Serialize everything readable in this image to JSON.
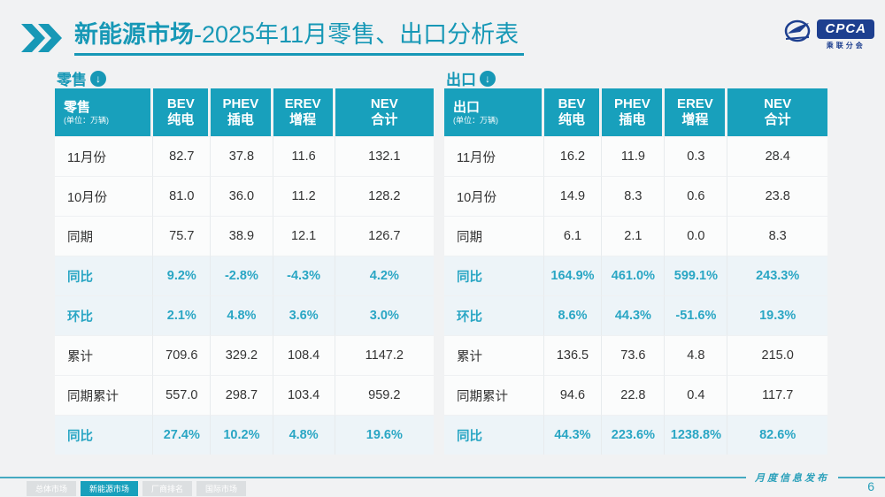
{
  "page": {
    "title_bold": "新能源市场",
    "title_rest": "-2025年11月零售、出口分析表",
    "footer_brand": "月度信息发布",
    "page_number": "6"
  },
  "logo": {
    "text": "CPCA",
    "subtext": "乘联分会"
  },
  "icons": {
    "section_arrow": "↓"
  },
  "colors": {
    "accent": "#18a0bc",
    "highlight_text": "#2aa6c4",
    "logo_navy": "#1d3f8f"
  },
  "footer_tabs": [
    {
      "label": "总体市场",
      "active": false
    },
    {
      "label": "新能源市场",
      "active": true
    },
    {
      "label": "厂商排名",
      "active": false
    },
    {
      "label": "国际市场",
      "active": false
    }
  ],
  "tables": [
    {
      "section_label": "零售",
      "header_title": "零售",
      "header_unit": "(单位：万辆)",
      "columns": [
        [
          "BEV",
          "纯电"
        ],
        [
          "PHEV",
          "插电"
        ],
        [
          "EREV",
          "增程"
        ],
        [
          "NEV",
          "合计"
        ]
      ],
      "rows": [
        {
          "label": "11月份",
          "values": [
            "82.7",
            "37.8",
            "11.6",
            "132.1"
          ],
          "highlight": false
        },
        {
          "label": "10月份",
          "values": [
            "81.0",
            "36.0",
            "11.2",
            "128.2"
          ],
          "highlight": false
        },
        {
          "label": "同期",
          "values": [
            "75.7",
            "38.9",
            "12.1",
            "126.7"
          ],
          "highlight": false
        },
        {
          "label": "同比",
          "values": [
            "9.2%",
            "-2.8%",
            "-4.3%",
            "4.2%"
          ],
          "highlight": true
        },
        {
          "label": "环比",
          "values": [
            "2.1%",
            "4.8%",
            "3.6%",
            "3.0%"
          ],
          "highlight": true
        },
        {
          "label": "累计",
          "values": [
            "709.6",
            "329.2",
            "108.4",
            "1147.2"
          ],
          "highlight": false
        },
        {
          "label": "同期累计",
          "values": [
            "557.0",
            "298.7",
            "103.4",
            "959.2"
          ],
          "highlight": false
        },
        {
          "label": "同比",
          "values": [
            "27.4%",
            "10.2%",
            "4.8%",
            "19.6%"
          ],
          "highlight": true
        }
      ]
    },
    {
      "section_label": "出口",
      "header_title": "出口",
      "header_unit": "(单位：万辆)",
      "columns": [
        [
          "BEV",
          "纯电"
        ],
        [
          "PHEV",
          "插电"
        ],
        [
          "EREV",
          "增程"
        ],
        [
          "NEV",
          "合计"
        ]
      ],
      "rows": [
        {
          "label": "11月份",
          "values": [
            "16.2",
            "11.9",
            "0.3",
            "28.4"
          ],
          "highlight": false
        },
        {
          "label": "10月份",
          "values": [
            "14.9",
            "8.3",
            "0.6",
            "23.8"
          ],
          "highlight": false
        },
        {
          "label": "同期",
          "values": [
            "6.1",
            "2.1",
            "0.0",
            "8.3"
          ],
          "highlight": false
        },
        {
          "label": "同比",
          "values": [
            "164.9%",
            "461.0%",
            "599.1%",
            "243.3%"
          ],
          "highlight": true
        },
        {
          "label": "环比",
          "values": [
            "8.6%",
            "44.3%",
            "-51.6%",
            "19.3%"
          ],
          "highlight": true
        },
        {
          "label": "累计",
          "values": [
            "136.5",
            "73.6",
            "4.8",
            "215.0"
          ],
          "highlight": false
        },
        {
          "label": "同期累计",
          "values": [
            "94.6",
            "22.8",
            "0.4",
            "117.7"
          ],
          "highlight": false
        },
        {
          "label": "同比",
          "values": [
            "44.3%",
            "223.6%",
            "1238.8%",
            "82.6%"
          ],
          "highlight": true
        }
      ]
    }
  ],
  "chart_data": [
    {
      "type": "table",
      "title": "零售 (单位: 万辆)",
      "columns": [
        "BEV 纯电",
        "PHEV 插电",
        "EREV 增程",
        "NEV 合计"
      ],
      "row_labels": [
        "11月份",
        "10月份",
        "同期",
        "同比",
        "环比",
        "累计",
        "同期累计",
        "同比"
      ],
      "cells": [
        [
          82.7,
          37.8,
          11.6,
          132.1
        ],
        [
          81.0,
          36.0,
          11.2,
          128.2
        ],
        [
          75.7,
          38.9,
          12.1,
          126.7
        ],
        [
          "9.2%",
          "-2.8%",
          "-4.3%",
          "4.2%"
        ],
        [
          "2.1%",
          "4.8%",
          "3.6%",
          "3.0%"
        ],
        [
          709.6,
          329.2,
          108.4,
          1147.2
        ],
        [
          557.0,
          298.7,
          103.4,
          959.2
        ],
        [
          "27.4%",
          "10.2%",
          "4.8%",
          "19.6%"
        ]
      ]
    },
    {
      "type": "table",
      "title": "出口 (单位: 万辆)",
      "columns": [
        "BEV 纯电",
        "PHEV 插电",
        "EREV 增程",
        "NEV 合计"
      ],
      "row_labels": [
        "11月份",
        "10月份",
        "同期",
        "同比",
        "环比",
        "累计",
        "同期累计",
        "同比"
      ],
      "cells": [
        [
          16.2,
          11.9,
          0.3,
          28.4
        ],
        [
          14.9,
          8.3,
          0.6,
          23.8
        ],
        [
          6.1,
          2.1,
          0.0,
          8.3
        ],
        [
          "164.9%",
          "461.0%",
          "599.1%",
          "243.3%"
        ],
        [
          "8.6%",
          "44.3%",
          "-51.6%",
          "19.3%"
        ],
        [
          136.5,
          73.6,
          4.8,
          215.0
        ],
        [
          94.6,
          22.8,
          0.4,
          117.7
        ],
        [
          "44.3%",
          "223.6%",
          "1238.8%",
          "82.6%"
        ]
      ]
    }
  ]
}
